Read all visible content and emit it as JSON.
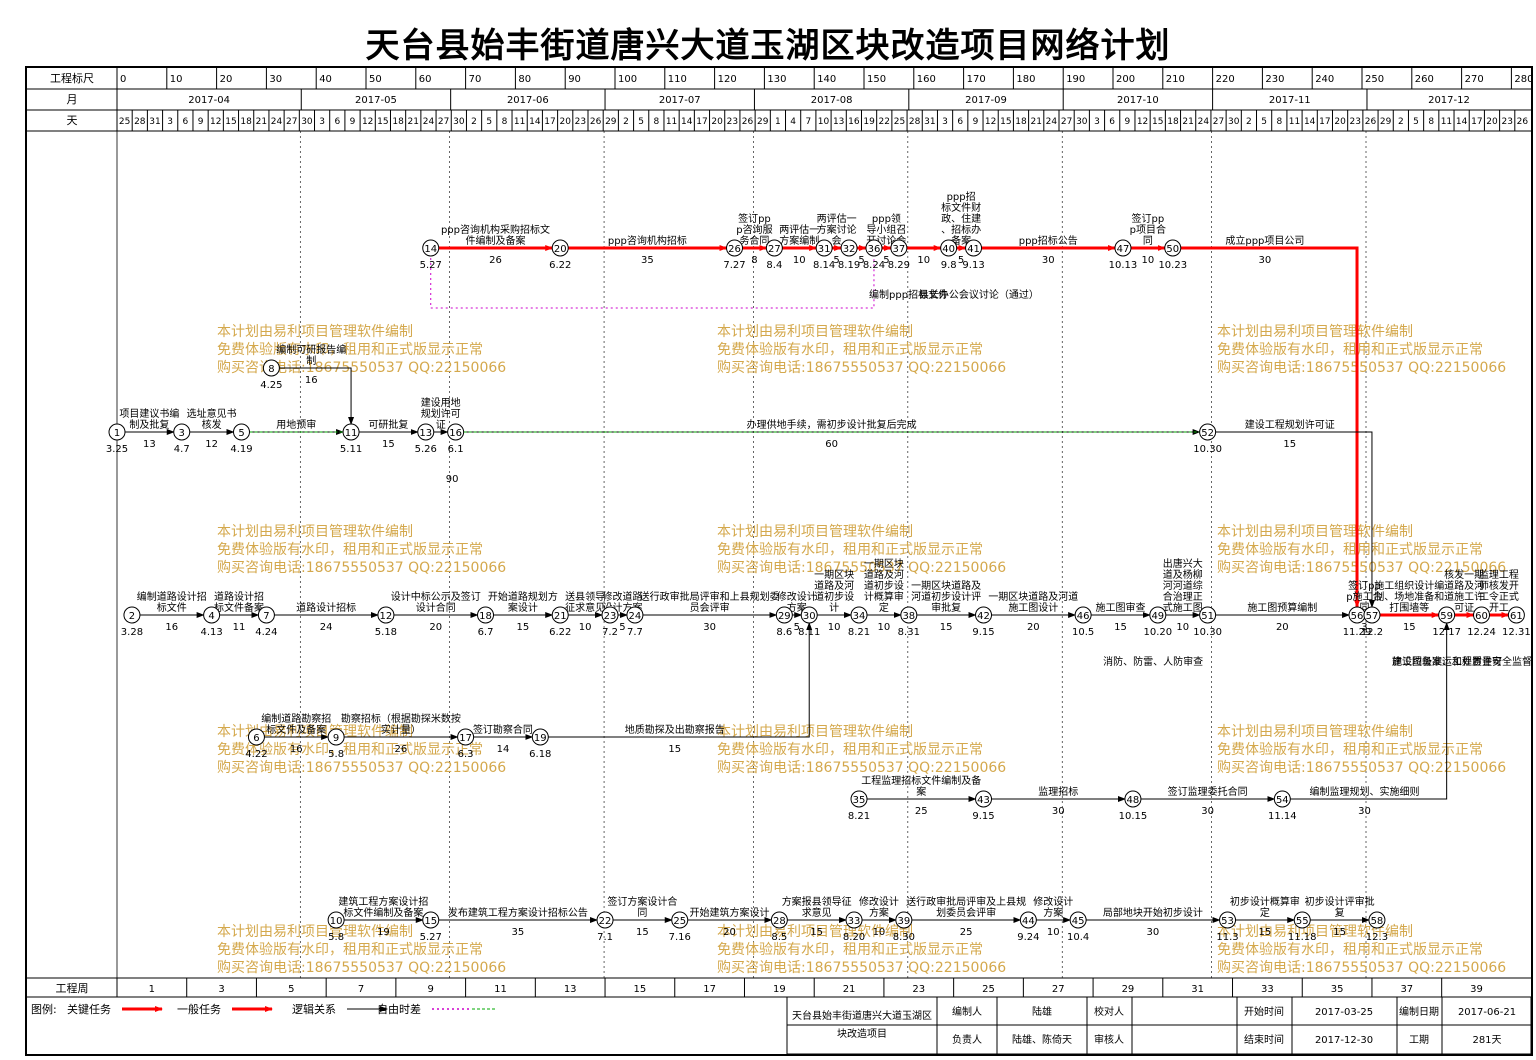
{
  "title": "天台县始丰街道唐兴大道玉湖区块改造项目网络计划",
  "header": {
    "scale_label": "工程标尺",
    "month_label": "月",
    "day_label": "天",
    "scale_ticks": [
      "0",
      "10",
      "20",
      "30",
      "40",
      "50",
      "60",
      "70",
      "80",
      "90",
      "100",
      "110",
      "120",
      "130",
      "140",
      "150",
      "160",
      "170",
      "180",
      "190",
      "200",
      "210",
      "220",
      "230",
      "240",
      "250",
      "260",
      "270",
      "280",
      "28"
    ],
    "months": [
      "2017-04",
      "2017-05",
      "2017-06",
      "2017-07",
      "2017-08",
      "2017-09",
      "2017-10",
      "2017-11",
      "2017-12"
    ],
    "days": [
      "25",
      "28",
      "31",
      "3",
      "6",
      "9",
      "12",
      "15",
      "18",
      "21",
      "24",
      "27",
      "30",
      "3",
      "6",
      "9",
      "12",
      "15",
      "18",
      "21",
      "24",
      "27",
      "30",
      "2",
      "5",
      "8",
      "11",
      "14",
      "17",
      "20",
      "23",
      "26",
      "29",
      "2",
      "5",
      "8",
      "11",
      "14",
      "17",
      "20",
      "23",
      "26",
      "29",
      "1",
      "4",
      "7",
      "10",
      "13",
      "16",
      "19",
      "22",
      "25",
      "28",
      "31",
      "3",
      "6",
      "9",
      "12",
      "15",
      "18",
      "21",
      "24",
      "27",
      "30",
      "3",
      "6",
      "9",
      "12",
      "15",
      "18",
      "21",
      "24",
      "27",
      "30",
      "2",
      "5",
      "8",
      "11",
      "14",
      "17",
      "20",
      "23",
      "26",
      "29",
      "2",
      "5",
      "8",
      "11",
      "14",
      "17",
      "20",
      "23",
      "26"
    ]
  },
  "footer": {
    "week_label": "工程周",
    "weeks": [
      "1",
      "3",
      "5",
      "7",
      "9",
      "11",
      "13",
      "15",
      "17",
      "19",
      "21",
      "23",
      "25",
      "27",
      "29",
      "31",
      "33",
      "35",
      "37",
      "39"
    ]
  },
  "watermark": [
    "本计划由易利项目管理软件编制",
    "免费体验版有水印，租用和正式版显示正常",
    "购买咨询电话:18675550537 QQ:22150066"
  ],
  "legend": {
    "label": "图例:",
    "items": [
      "关键任务",
      "一般任务",
      "逻辑关系",
      "自由时差"
    ]
  },
  "info": {
    "project_name": "天台县始丰街道唐兴大道玉湖区块改造项目",
    "editor_label": "编制人",
    "editor": "陆雄",
    "checker_label": "校对人",
    "checker": "",
    "start_label": "开始时间",
    "start": "2017-03-25",
    "date_label": "编制日期",
    "date": "2017-06-21",
    "owner_label": "负责人",
    "owner": "陆雄、陈倚天",
    "reviewer_label": "审核人",
    "reviewer": "",
    "end_label": "结束时间",
    "end": "2017-12-30",
    "period_label": "工期",
    "period": "281天"
  },
  "colors": {
    "critical": "#ff0000",
    "normal": "#000000",
    "logic": "#000000",
    "float": "#00aa00",
    "free_float": "#cc00cc",
    "watermark": "#d4a84c"
  },
  "network": {
    "nodes": [
      {
        "id": "1",
        "date": "3.25",
        "day": 0,
        "row": 3
      },
      {
        "id": "3",
        "date": "4.7",
        "day": 13,
        "row": 3
      },
      {
        "id": "5",
        "date": "4.19",
        "day": 25,
        "row": 3
      },
      {
        "id": "8",
        "date": "4.25",
        "day": 31,
        "row": 2.3
      },
      {
        "id": "11",
        "date": "5.11",
        "day": 47,
        "row": 3
      },
      {
        "id": "13",
        "date": "5.26",
        "day": 62,
        "row": 3
      },
      {
        "id": "16",
        "date": "6.1",
        "day": 68,
        "row": 3
      },
      {
        "id": "52",
        "date": "10.30",
        "day": 219,
        "row": 3
      },
      {
        "id": "14",
        "date": "5.27",
        "day": 63,
        "row": 1
      },
      {
        "id": "20",
        "date": "6.22",
        "day": 89,
        "row": 1
      },
      {
        "id": "26",
        "date": "7.27",
        "day": 124,
        "row": 1
      },
      {
        "id": "27",
        "date": "8.4",
        "day": 132,
        "row": 1
      },
      {
        "id": "31",
        "date": "8.14",
        "day": 142,
        "row": 1
      },
      {
        "id": "32",
        "date": "8.19",
        "day": 147,
        "row": 1
      },
      {
        "id": "36",
        "date": "8.24",
        "day": 152,
        "row": 1
      },
      {
        "id": "37",
        "date": "8.29",
        "day": 157,
        "row": 1
      },
      {
        "id": "40",
        "date": "9.8",
        "day": 167,
        "row": 1
      },
      {
        "id": "41",
        "date": "9.13",
        "day": 172,
        "row": 1
      },
      {
        "id": "47",
        "date": "10.13",
        "day": 202,
        "row": 1
      },
      {
        "id": "50",
        "date": "10.23",
        "day": 212,
        "row": 1
      },
      {
        "id": "2",
        "date": "3.28",
        "day": 3,
        "row": 4
      },
      {
        "id": "4",
        "date": "4.13",
        "day": 19,
        "row": 4
      },
      {
        "id": "7",
        "date": "4.24",
        "day": 30,
        "row": 4
      },
      {
        "id": "12",
        "date": "5.18",
        "day": 54,
        "row": 4
      },
      {
        "id": "18",
        "date": "6.7",
        "day": 74,
        "row": 4
      },
      {
        "id": "21",
        "date": "6.22",
        "day": 89,
        "row": 4
      },
      {
        "id": "23",
        "date": "7.2",
        "day": 99,
        "row": 4
      },
      {
        "id": "24",
        "date": "7.7",
        "day": 104,
        "row": 4
      },
      {
        "id": "29",
        "date": "8.6",
        "day": 134,
        "row": 4
      },
      {
        "id": "30",
        "date": "8.11",
        "day": 139,
        "row": 4
      },
      {
        "id": "34",
        "date": "8.21",
        "day": 149,
        "row": 4
      },
      {
        "id": "38",
        "date": "8.31",
        "day": 159,
        "row": 4
      },
      {
        "id": "42",
        "date": "9.15",
        "day": 174,
        "row": 4
      },
      {
        "id": "46",
        "date": "10.5",
        "day": 194,
        "row": 4
      },
      {
        "id": "49",
        "date": "10.20",
        "day": 209,
        "row": 4
      },
      {
        "id": "51",
        "date": "10.30",
        "day": 219,
        "row": 4
      },
      {
        "id": "56",
        "date": "11.29",
        "day": 249,
        "row": 4
      },
      {
        "id": "57",
        "date": "12.2",
        "day": 252,
        "row": 4
      },
      {
        "id": "59",
        "date": "12.17",
        "day": 267,
        "row": 4
      },
      {
        "id": "60",
        "date": "12.24",
        "day": 274,
        "row": 4
      },
      {
        "id": "61",
        "date": "12.31",
        "day": 281,
        "row": 4
      },
      {
        "id": "6",
        "date": "4.22",
        "day": 28,
        "row": 5
      },
      {
        "id": "9",
        "date": "5.8",
        "day": 44,
        "row": 5
      },
      {
        "id": "17",
        "date": "6.3",
        "day": 70,
        "row": 5
      },
      {
        "id": "19",
        "date": "6.18",
        "day": 85,
        "row": 5
      },
      {
        "id": "35",
        "date": "8.21",
        "day": 149,
        "row": 6
      },
      {
        "id": "43",
        "date": "9.15",
        "day": 174,
        "row": 6
      },
      {
        "id": "48",
        "date": "10.15",
        "day": 204,
        "row": 6
      },
      {
        "id": "54",
        "date": "11.14",
        "day": 234,
        "row": 6
      },
      {
        "id": "10",
        "date": "5.8",
        "day": 44,
        "row": 7
      },
      {
        "id": "15",
        "date": "5.27",
        "day": 63,
        "row": 7
      },
      {
        "id": "22",
        "date": "7.1",
        "day": 98,
        "row": 7
      },
      {
        "id": "25",
        "date": "7.16",
        "day": 113,
        "row": 7
      },
      {
        "id": "28",
        "date": "8.5",
        "day": 133,
        "row": 7
      },
      {
        "id": "33",
        "date": "8.20",
        "day": 148,
        "row": 7
      },
      {
        "id": "39",
        "date": "8.30",
        "day": 158,
        "row": 7
      },
      {
        "id": "44",
        "date": "9.24",
        "day": 183,
        "row": 7
      },
      {
        "id": "45",
        "date": "10.4",
        "day": 193,
        "row": 7
      },
      {
        "id": "53",
        "date": "11.3",
        "day": 223,
        "row": 7
      },
      {
        "id": "55",
        "date": "11.18",
        "day": 238,
        "row": 7
      },
      {
        "id": "58",
        "date": "12.3",
        "day": 253,
        "row": 7
      }
    ],
    "tasks": [
      {
        "from": "14",
        "to": "20",
        "name": "ppp咨询机构采购招标文件编制及备案",
        "dur": "26",
        "crit": true
      },
      {
        "from": "20",
        "to": "26",
        "name": "ppp咨询机构招标",
        "dur": "35",
        "crit": true
      },
      {
        "from": "26",
        "to": "27",
        "name": "签订ppp咨询服务合同",
        "dur": "8",
        "crit": true
      },
      {
        "from": "27",
        "to": "31",
        "name": "两评估一方案编制",
        "dur": "10",
        "crit": true
      },
      {
        "from": "31",
        "to": "32",
        "name": "两评估一方案讨论会",
        "dur": "5",
        "crit": true
      },
      {
        "from": "32",
        "to": "36",
        "name": "",
        "dur": "5",
        "crit": true
      },
      {
        "from": "36",
        "to": "37",
        "name": "ppp领导小组召开讨论会",
        "dur": "5",
        "crit": true
      },
      {
        "from": "37",
        "to": "40",
        "name": "",
        "dur": "10",
        "crit": true
      },
      {
        "from": "40",
        "to": "41",
        "name": "ppp招标文件财政、住建、招标办备案",
        "dur": "5",
        "crit": true
      },
      {
        "from": "41",
        "to": "47",
        "name": "ppp招标公告",
        "dur": "30",
        "crit": true
      },
      {
        "from": "47",
        "to": "50",
        "name": "签订ppp项目合同",
        "dur": "10",
        "crit": true
      },
      {
        "from": "50",
        "to": "56",
        "name": "成立ppp项目公司",
        "dur": "30",
        "crit": true
      },
      {
        "from": "1",
        "to": "3",
        "name": "项目建议书编制及批复",
        "dur": "13",
        "crit": false
      },
      {
        "from": "3",
        "to": "5",
        "name": "选址意见书核发",
        "dur": "12",
        "crit": false
      },
      {
        "from": "5",
        "to": "11",
        "name": "用地预审",
        "dur": "",
        "crit": false
      },
      {
        "from": "8",
        "to": "11",
        "name": "编制可研报告编制",
        "dur": "16",
        "crit": false
      },
      {
        "from": "11",
        "to": "13",
        "name": "可研批复",
        "dur": "15",
        "crit": false
      },
      {
        "from": "13",
        "to": "16",
        "name": "建设用地规划许可证",
        "dur": "",
        "crit": false
      },
      {
        "from": "16",
        "to": "52",
        "name": "办理供地手续，需初步设计批复后完成",
        "dur": "60",
        "crit": false
      },
      {
        "from": "52",
        "to": "57",
        "name": "建设工程规划许可证",
        "dur": "15",
        "crit": false
      },
      {
        "from": "2",
        "to": "4",
        "name": "编制道路设计招标文件",
        "dur": "16",
        "crit": false
      },
      {
        "from": "4",
        "to": "7",
        "name": "道路设计招标文件备案",
        "dur": "11",
        "crit": false
      },
      {
        "from": "7",
        "to": "12",
        "name": "道路设计招标",
        "dur": "24",
        "crit": false
      },
      {
        "from": "12",
        "to": "18",
        "name": "设计中标公示及签订设计合同",
        "dur": "20",
        "crit": false
      },
      {
        "from": "18",
        "to": "21",
        "name": "开始道路规划方案设计",
        "dur": "15",
        "crit": false
      },
      {
        "from": "21",
        "to": "23",
        "name": "送县领导征求意见",
        "dur": "10",
        "crit": false
      },
      {
        "from": "23",
        "to": "24",
        "name": "修改道路设计方案",
        "dur": "5",
        "crit": false
      },
      {
        "from": "24",
        "to": "29",
        "name": "送行政审批局评审和上县规划委员会评审",
        "dur": "30",
        "crit": false
      },
      {
        "from": "29",
        "to": "30",
        "name": "修改设计方案",
        "dur": "5",
        "crit": false
      },
      {
        "from": "30",
        "to": "34",
        "name": "一期区块道路及河道初步设计",
        "dur": "10",
        "crit": false
      },
      {
        "from": "34",
        "to": "38",
        "name": "一期区块道路及河道初步设计概算审定",
        "dur": "10",
        "crit": false
      },
      {
        "from": "38",
        "to": "42",
        "name": "一期区块道路及河道初步设计评审批复",
        "dur": "15",
        "crit": false
      },
      {
        "from": "42",
        "to": "46",
        "name": "一期区块道路及河道施工图设计",
        "dur": "20",
        "crit": false
      },
      {
        "from": "46",
        "to": "49",
        "name": "施工图审查",
        "dur": "15",
        "crit": false
      },
      {
        "from": "49",
        "to": "51",
        "name": "出唐兴大道及杨柳河河道综合治理正式施工图",
        "dur": "10",
        "crit": false
      },
      {
        "from": "51",
        "to": "56",
        "name": "施工图预算编制",
        "dur": "20",
        "crit": false
      },
      {
        "from": "56",
        "to": "57",
        "name": "签订ppp施工合同",
        "dur": "3",
        "crit": true
      },
      {
        "from": "57",
        "to": "59",
        "name": "施工组织设计编制、场地准备和打围墙等",
        "dur": "15",
        "crit": true
      },
      {
        "from": "59",
        "to": "60",
        "name": "核发一期道路及河道施工许可证",
        "dur": "",
        "crit": true
      },
      {
        "from": "60",
        "to": "61",
        "name": "监理工程师核发开工令正式开工",
        "dur": "",
        "crit": true
      },
      {
        "from": "6",
        "to": "9",
        "name": "编制道路勘察招标文件及备案",
        "dur": "16",
        "crit": false
      },
      {
        "from": "9",
        "to": "17",
        "name": "勘察招标（根据勘探米数按实计量）",
        "dur": "26",
        "crit": false
      },
      {
        "from": "17",
        "to": "19",
        "name": "签订勘察合同",
        "dur": "14",
        "crit": false
      },
      {
        "from": "19",
        "to": "30",
        "name": "地质勘探及出勘察报告",
        "dur": "15",
        "crit": false
      },
      {
        "from": "35",
        "to": "43",
        "name": "工程监理招标文件编制及备案",
        "dur": "25",
        "crit": false
      },
      {
        "from": "43",
        "to": "48",
        "name": "监理招标",
        "dur": "30",
        "crit": false
      },
      {
        "from": "48",
        "to": "54",
        "name": "签订监理委托合同",
        "dur": "30",
        "crit": false
      },
      {
        "from": "54",
        "to": "59",
        "name": "编制监理规划、实施细则",
        "dur": "30",
        "crit": false
      },
      {
        "from": "10",
        "to": "15",
        "name": "建筑工程方案设计招标文件编制及备案",
        "dur": "19",
        "crit": false
      },
      {
        "from": "15",
        "to": "22",
        "name": "发布建筑工程方案设计招标公告",
        "dur": "35",
        "crit": false
      },
      {
        "from": "22",
        "to": "25",
        "name": "签订方案设计合同",
        "dur": "15",
        "crit": false
      },
      {
        "from": "25",
        "to": "28",
        "name": "开始建筑方案设计",
        "dur": "20",
        "crit": false
      },
      {
        "from": "28",
        "to": "33",
        "name": "方案报县领导征求意见",
        "dur": "15",
        "crit": false
      },
      {
        "from": "33",
        "to": "39",
        "name": "修改设计方案",
        "dur": "10",
        "crit": false
      },
      {
        "from": "39",
        "to": "44",
        "name": "送行政审批局评审及上县规划委员会评审",
        "dur": "25",
        "crit": false
      },
      {
        "from": "44",
        "to": "45",
        "name": "修改设计方案",
        "dur": "10",
        "crit": false
      },
      {
        "from": "45",
        "to": "53",
        "name": "局部地块开始初步设计",
        "dur": "30",
        "crit": false
      },
      {
        "from": "53",
        "to": "55",
        "name": "初步设计概算审定",
        "dur": "15",
        "crit": false
      },
      {
        "from": "55",
        "to": "58",
        "name": "初步设计评审批复",
        "dur": "15",
        "crit": false
      }
    ],
    "extra_labels": [
      {
        "text": "编制ppp招标文件",
        "near": "32"
      },
      {
        "text": "县长办公会议讨论（通过）",
        "near": "37"
      },
      {
        "text": "消防、防雷、人防审查",
        "near": "46"
      },
      {
        "text": "建设垃圾准运和处置许可",
        "near": "57"
      },
      {
        "text": "施工图备案、工程质量安全监督手续",
        "near": "57"
      },
      {
        "text": "90",
        "near": "13"
      }
    ]
  }
}
